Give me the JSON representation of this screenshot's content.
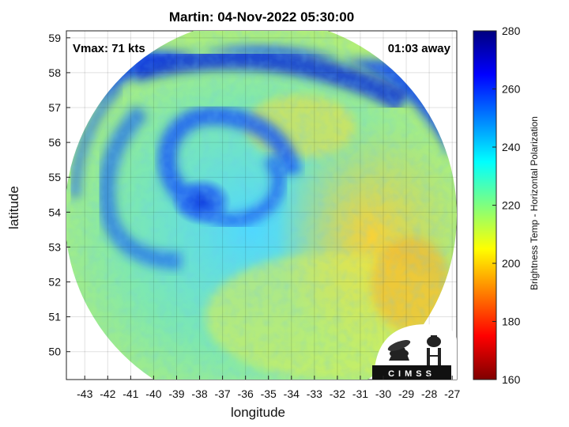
{
  "title": "Martin: 04-Nov-2022 05:30:00",
  "vmax_label": "Vmax: 71 kts",
  "time_label": "01:03 away",
  "xlabel": "longitude",
  "ylabel": "latitude",
  "x_ticks": [
    "-43",
    "-42",
    "-41",
    "-40",
    "-39",
    "-38",
    "-37",
    "-36",
    "-35",
    "-34",
    "-33",
    "-32",
    "-31",
    "-30",
    "-29",
    "-28",
    "-27"
  ],
  "y_ticks": [
    "50",
    "51",
    "52",
    "53",
    "54",
    "55",
    "56",
    "57",
    "58",
    "59"
  ],
  "colorbar": {
    "label": "Brightness Temp - Horizontal Polarization",
    "ticks": [
      "160",
      "180",
      "200",
      "220",
      "240",
      "260",
      "280"
    ],
    "range": [
      160,
      280
    ]
  },
  "logo_text": "CIMSS",
  "map": {
    "xlim": [
      -43.8,
      -26.8
    ],
    "ylim": [
      49.2,
      59.2
    ],
    "swath_center": [
      -35.3,
      54.2
    ],
    "storm_center": [
      -38.3,
      54.4
    ]
  }
}
